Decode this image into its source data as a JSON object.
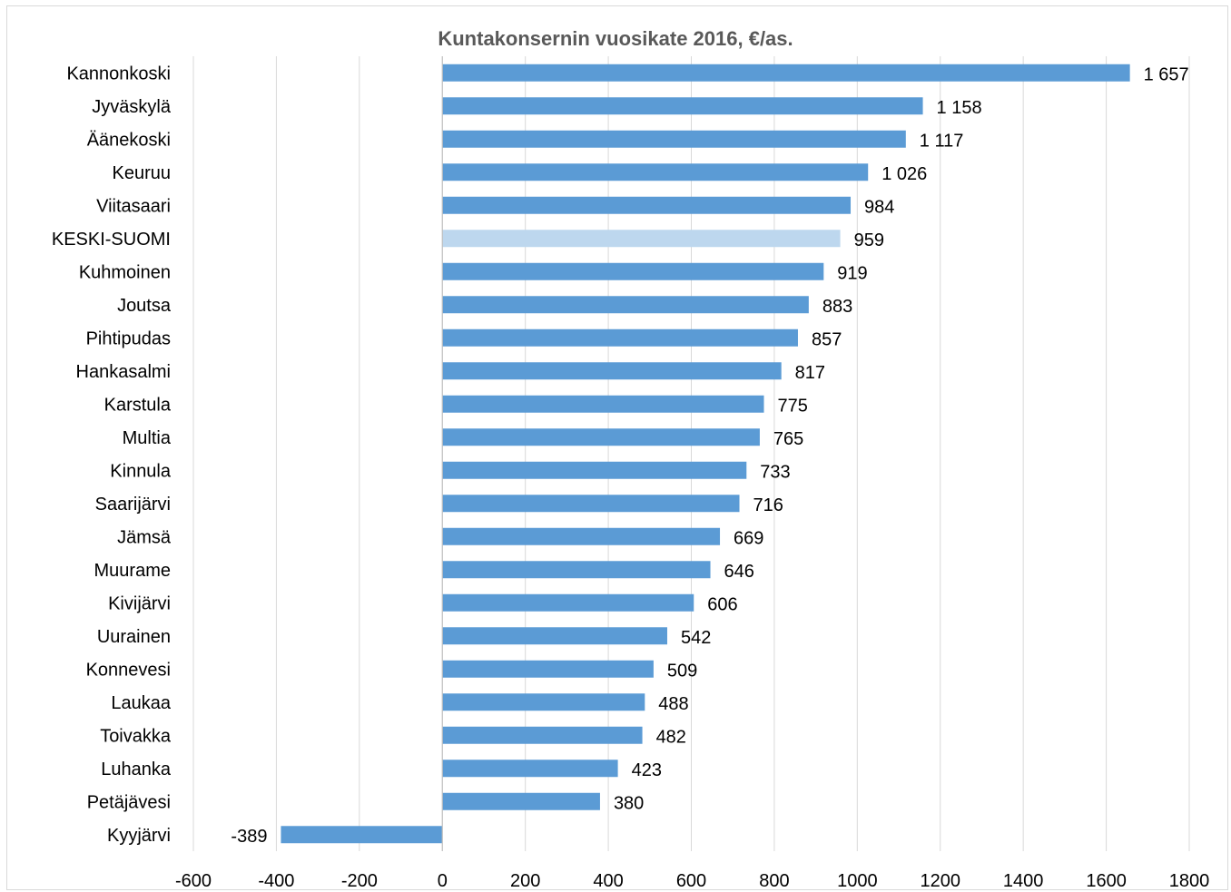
{
  "chart_data": {
    "type": "bar",
    "orientation": "horizontal",
    "title": "Kuntakonsernin vuosikate 2016, €/as.",
    "xlim": [
      -600,
      1800
    ],
    "xticks": [
      -600,
      -400,
      -200,
      0,
      200,
      400,
      600,
      800,
      1000,
      1200,
      1400,
      1600,
      1800
    ],
    "grid": true,
    "colors": {
      "bar": "#5b9bd5",
      "highlight": "#bdd7ee",
      "grid": "#d9d9d9",
      "axis": "#bfbfbf"
    },
    "highlight_category": "KESKI-SUOMI",
    "categories": [
      "Kannonkoski",
      "Jyväskylä",
      "Äänekoski",
      "Keuruu",
      "Viitasaari",
      "KESKI-SUOMI",
      "Kuhmoinen",
      "Joutsa",
      "Pihtipudas",
      "Hankasalmi",
      "Karstula",
      "Multia",
      "Kinnula",
      "Saarijärvi",
      "Jämsä",
      "Muurame",
      "Kivijärvi",
      "Uurainen",
      "Konnevesi",
      "Laukaa",
      "Toivakka",
      "Luhanka",
      "Petäjävesi",
      "Kyyjärvi"
    ],
    "values": [
      1657,
      1158,
      1117,
      1026,
      984,
      959,
      919,
      883,
      857,
      817,
      775,
      765,
      733,
      716,
      669,
      646,
      606,
      542,
      509,
      488,
      482,
      423,
      380,
      -389
    ],
    "value_labels": [
      "1 657",
      "1 158",
      "1 117",
      "1 026",
      "984",
      "959",
      "919",
      "883",
      "857",
      "817",
      "775",
      "765",
      "733",
      "716",
      "669",
      "646",
      "606",
      "542",
      "509",
      "488",
      "482",
      "423",
      "380",
      "-389"
    ]
  }
}
